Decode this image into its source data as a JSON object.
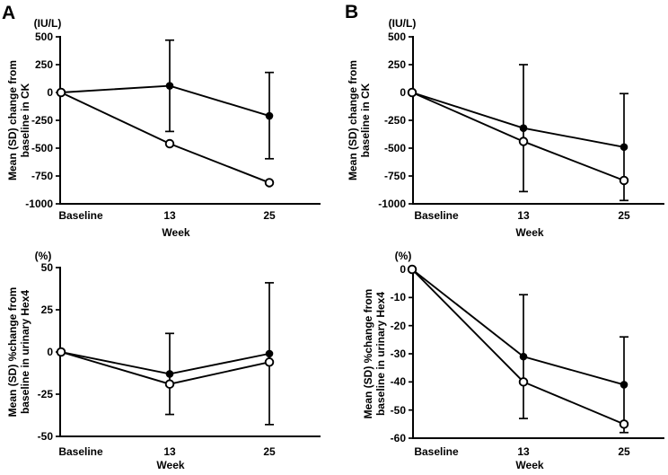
{
  "colors": {
    "ink": "#000000",
    "background": "#ffffff"
  },
  "chart_data": [
    {
      "type": "line",
      "panel_label": "A",
      "position": "top-left",
      "unit": "(IU/L)",
      "ylabel": "Mean (SD) change from baseline in CK",
      "ylabel_lines": [
        "Mean (SD) change from",
        "baseline in CK"
      ],
      "xlabel": "Week",
      "categories": [
        "Baseline",
        "13",
        "25"
      ],
      "yticks": [
        500,
        250,
        0,
        -250,
        -500,
        -750,
        -1000
      ],
      "ylim": [
        -1000,
        500
      ],
      "grid": false,
      "legend": "none",
      "series": [
        {
          "name": "filled-circle",
          "marker": "filled",
          "values": [
            0,
            60,
            -210
          ]
        },
        {
          "name": "open-circle",
          "marker": "open",
          "values": [
            0,
            -460,
            -810
          ]
        }
      ],
      "error_bars": [
        {
          "category_index": 1,
          "series": "filled-circle",
          "low": -350,
          "high": 470
        },
        {
          "category_index": 2,
          "series": "filled-circle",
          "low": -595,
          "high": 180
        }
      ]
    },
    {
      "type": "line",
      "panel_label": "B",
      "position": "top-right",
      "unit": "(IU/L)",
      "ylabel": "Mean (SD) change from baseline in CK",
      "ylabel_lines": [
        "Mean (SD) change from",
        "baseline in CK"
      ],
      "xlabel": "Week",
      "categories": [
        "Baseline",
        "13",
        "25"
      ],
      "yticks": [
        500,
        250,
        0,
        -250,
        -500,
        -750,
        -1000
      ],
      "ylim": [
        -1000,
        500
      ],
      "grid": false,
      "legend": "none",
      "series": [
        {
          "name": "filled-circle",
          "marker": "filled",
          "values": [
            0,
            -320,
            -490
          ]
        },
        {
          "name": "open-circle",
          "marker": "open",
          "values": [
            0,
            -440,
            -790
          ]
        }
      ],
      "error_bars": [
        {
          "category_index": 1,
          "series": "filled-circle",
          "low": -890,
          "high": 250
        },
        {
          "category_index": 2,
          "series": "filled-circle",
          "low": -970,
          "high": -10
        }
      ]
    },
    {
      "type": "line",
      "position": "bottom-left",
      "unit": "(%)",
      "ylabel": "Mean (SD) %change from baseline in urinary Hex4",
      "ylabel_lines": [
        "Mean (SD) %change from",
        "baseline in urinary Hex4"
      ],
      "xlabel": "Week",
      "categories": [
        "Baseline",
        "13",
        "25"
      ],
      "yticks": [
        50,
        25,
        0,
        -25,
        -50
      ],
      "ylim": [
        -50,
        50
      ],
      "grid": false,
      "legend": "none",
      "series": [
        {
          "name": "filled-circle",
          "marker": "filled",
          "values": [
            0,
            -13,
            -1
          ]
        },
        {
          "name": "open-circle",
          "marker": "open",
          "values": [
            0,
            -19,
            -6
          ]
        }
      ],
      "error_bars": [
        {
          "category_index": 1,
          "series": "filled-circle",
          "low": -37,
          "high": 11
        },
        {
          "category_index": 2,
          "series": "filled-circle",
          "low": -43,
          "high": 41
        }
      ]
    },
    {
      "type": "line",
      "position": "bottom-right",
      "unit": "(%)",
      "ylabel": "Mean (SD) %change from baseline in urinary Hex4",
      "ylabel_lines": [
        "Mean (SD) %change from",
        "baseline in urinary Hex4"
      ],
      "xlabel": "Week",
      "categories": [
        "Baseline",
        "13",
        "25"
      ],
      "yticks": [
        0,
        -10,
        -20,
        -30,
        -40,
        -50,
        -60
      ],
      "ylim": [
        -60,
        0
      ],
      "grid": false,
      "legend": "none",
      "series": [
        {
          "name": "filled-circle",
          "marker": "filled",
          "values": [
            0,
            -31,
            -41
          ]
        },
        {
          "name": "open-circle",
          "marker": "open",
          "values": [
            0,
            -40,
            -55
          ]
        }
      ],
      "error_bars": [
        {
          "category_index": 1,
          "series": "filled-circle",
          "low": -53,
          "high": -9
        },
        {
          "category_index": 2,
          "series": "filled-circle",
          "low": -58,
          "high": -24
        }
      ]
    }
  ]
}
